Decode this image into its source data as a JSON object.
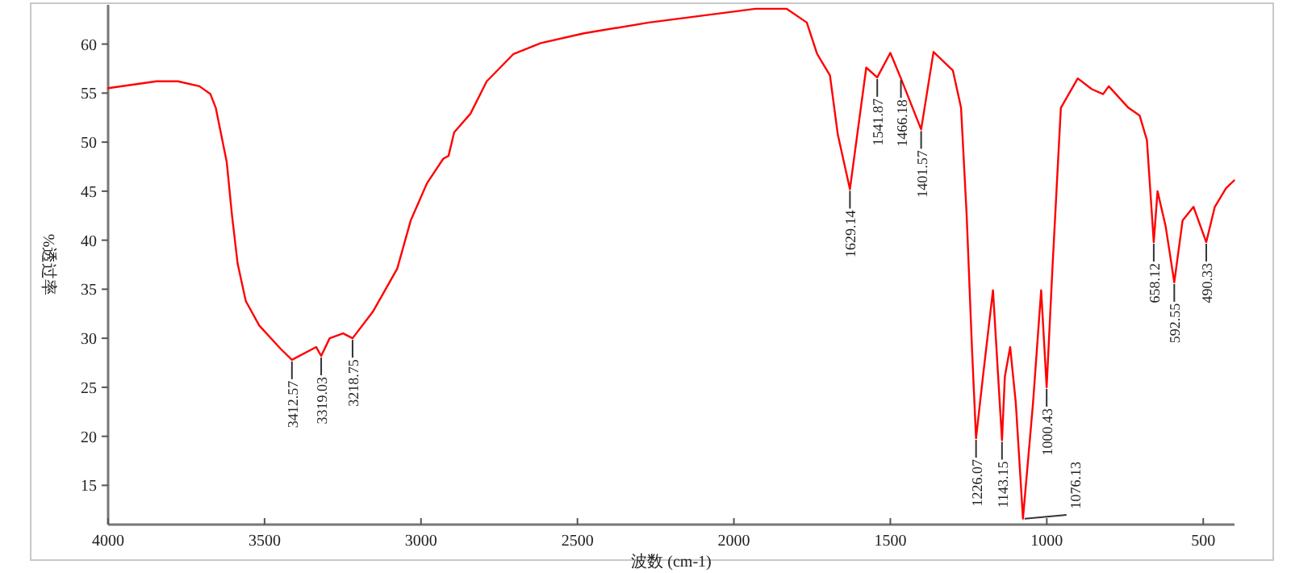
{
  "chart_data": {
    "type": "line",
    "xlabel": "波数 (cm-1)",
    "ylabel": "%透过率",
    "x": [
      4000,
      3846,
      3777,
      3708,
      3673,
      3656,
      3621,
      3604,
      3586,
      3560,
      3517,
      3448,
      3412.57,
      3335,
      3319.03,
      3292,
      3249,
      3218.75,
      3154,
      3076,
      3033,
      2981,
      2929,
      2912,
      2894,
      2842,
      2790,
      2704,
      2617,
      2479,
      2271,
      1931,
      1832,
      1767,
      1734,
      1693,
      1668,
      1629.14,
      1577,
      1541.87,
      1500,
      1466.18,
      1401.57,
      1362,
      1300,
      1274,
      1256,
      1239,
      1226.07,
      1204,
      1172,
      1143.15,
      1134,
      1117,
      1099,
      1076.13,
      1044,
      1018,
      1000.43,
      982,
      955,
      901,
      856,
      820,
      802,
      739,
      703,
      680,
      658.12,
      646,
      620,
      592.55,
      566,
      531,
      490.33,
      463,
      427,
      401
    ],
    "series": [
      {
        "color": "#ff0000",
        "values": [
          55.5,
          56.2,
          56.2,
          55.7,
          54.9,
          53.5,
          48.0,
          42.5,
          37.6,
          33.8,
          31.3,
          28.9,
          27.8,
          29.1,
          28.2,
          30.0,
          30.5,
          30.0,
          32.7,
          37.1,
          42.0,
          45.8,
          48.3,
          48.6,
          51.0,
          52.9,
          56.2,
          59.0,
          60.1,
          61.1,
          62.2,
          63.6,
          63.6,
          62.2,
          59.0,
          56.8,
          50.8,
          45.2,
          57.6,
          56.6,
          59.1,
          56.5,
          51.3,
          59.2,
          57.3,
          53.5,
          42.5,
          28.9,
          19.8,
          26.1,
          34.9,
          19.6,
          26.1,
          29.1,
          23.4,
          11.6,
          23.4,
          34.9,
          25.0,
          37.1,
          53.5,
          56.5,
          55.4,
          54.9,
          55.7,
          53.5,
          52.7,
          50.2,
          39.8,
          45.0,
          41.4,
          35.7,
          42.0,
          43.4,
          39.8,
          43.4,
          45.3,
          46.1
        ]
      }
    ],
    "xlim": [
      4000,
      400
    ],
    "ylim": [
      11,
      64
    ],
    "xticks": [
      4000,
      3500,
      3000,
      2500,
      2000,
      1500,
      1000,
      500
    ],
    "yticks": [
      15,
      20,
      25,
      30,
      35,
      40,
      45,
      50,
      55,
      60
    ],
    "grid": false,
    "annotations": [
      {
        "text": "3412.57",
        "x": 3412.57,
        "y": 27.8
      },
      {
        "text": "3319.03",
        "x": 3319.03,
        "y": 28.2
      },
      {
        "text": "3218.75",
        "x": 3218.75,
        "y": 30.0
      },
      {
        "text": "1629.14",
        "x": 1629.14,
        "y": 45.2
      },
      {
        "text": "1541.87",
        "x": 1541.87,
        "y": 56.6
      },
      {
        "text": "1466.18",
        "x": 1466.18,
        "y": 56.5
      },
      {
        "text": "1401.57",
        "x": 1401.57,
        "y": 51.3
      },
      {
        "text": "1226.07",
        "x": 1226.07,
        "y": 19.8
      },
      {
        "text": "1143.15",
        "x": 1143.15,
        "y": 19.6
      },
      {
        "text": "1076.13",
        "x": 1076.13,
        "y": 11.6
      },
      {
        "text": "1000.43",
        "x": 1000.43,
        "y": 25.0
      },
      {
        "text": "658.12",
        "x": 658.12,
        "y": 39.8
      },
      {
        "text": "592.55",
        "x": 592.55,
        "y": 35.7
      },
      {
        "text": "490.33",
        "x": 490.33,
        "y": 39.8
      }
    ]
  }
}
